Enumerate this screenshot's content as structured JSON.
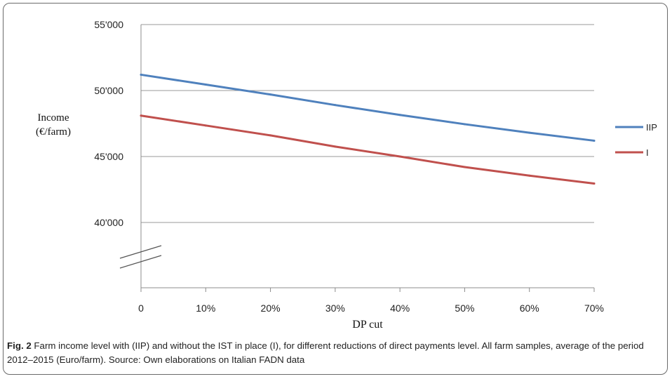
{
  "caption": {
    "label": "Fig. 2",
    "text": " Farm income level with (IIP) and without the IST in place (I), for different reductions of direct payments level. All farm samples, average of the period 2012–2015 (Euro/farm). Source: Own elaborations on Italian FADN data"
  },
  "chart_data": {
    "type": "line",
    "title": "",
    "xlabel": "DP cut",
    "ylabel": "Income (€/farm)",
    "ylabel_lines": [
      "Income",
      "(€/farm)"
    ],
    "x": [
      0,
      10,
      20,
      30,
      40,
      50,
      60,
      70
    ],
    "x_tick_labels": [
      "0",
      "10%",
      "20%",
      "30%",
      "40%",
      "50%",
      "60%",
      "70%"
    ],
    "y_ticks": [
      40000,
      45000,
      50000,
      55000
    ],
    "y_tick_labels": [
      "40'000",
      "45'000",
      "50'000",
      "55'000"
    ],
    "ylim": [
      40000,
      55000
    ],
    "y_axis_break": true,
    "grid": true,
    "legend_position": "right",
    "series": [
      {
        "name": "IIP",
        "color": "#4f81bd",
        "values": [
          51200,
          50450,
          49700,
          48900,
          48150,
          47450,
          46800,
          46200
        ]
      },
      {
        "name": "I",
        "color": "#c0504d",
        "values": [
          48100,
          47350,
          46600,
          45750,
          45000,
          44200,
          43550,
          42950
        ]
      }
    ]
  }
}
